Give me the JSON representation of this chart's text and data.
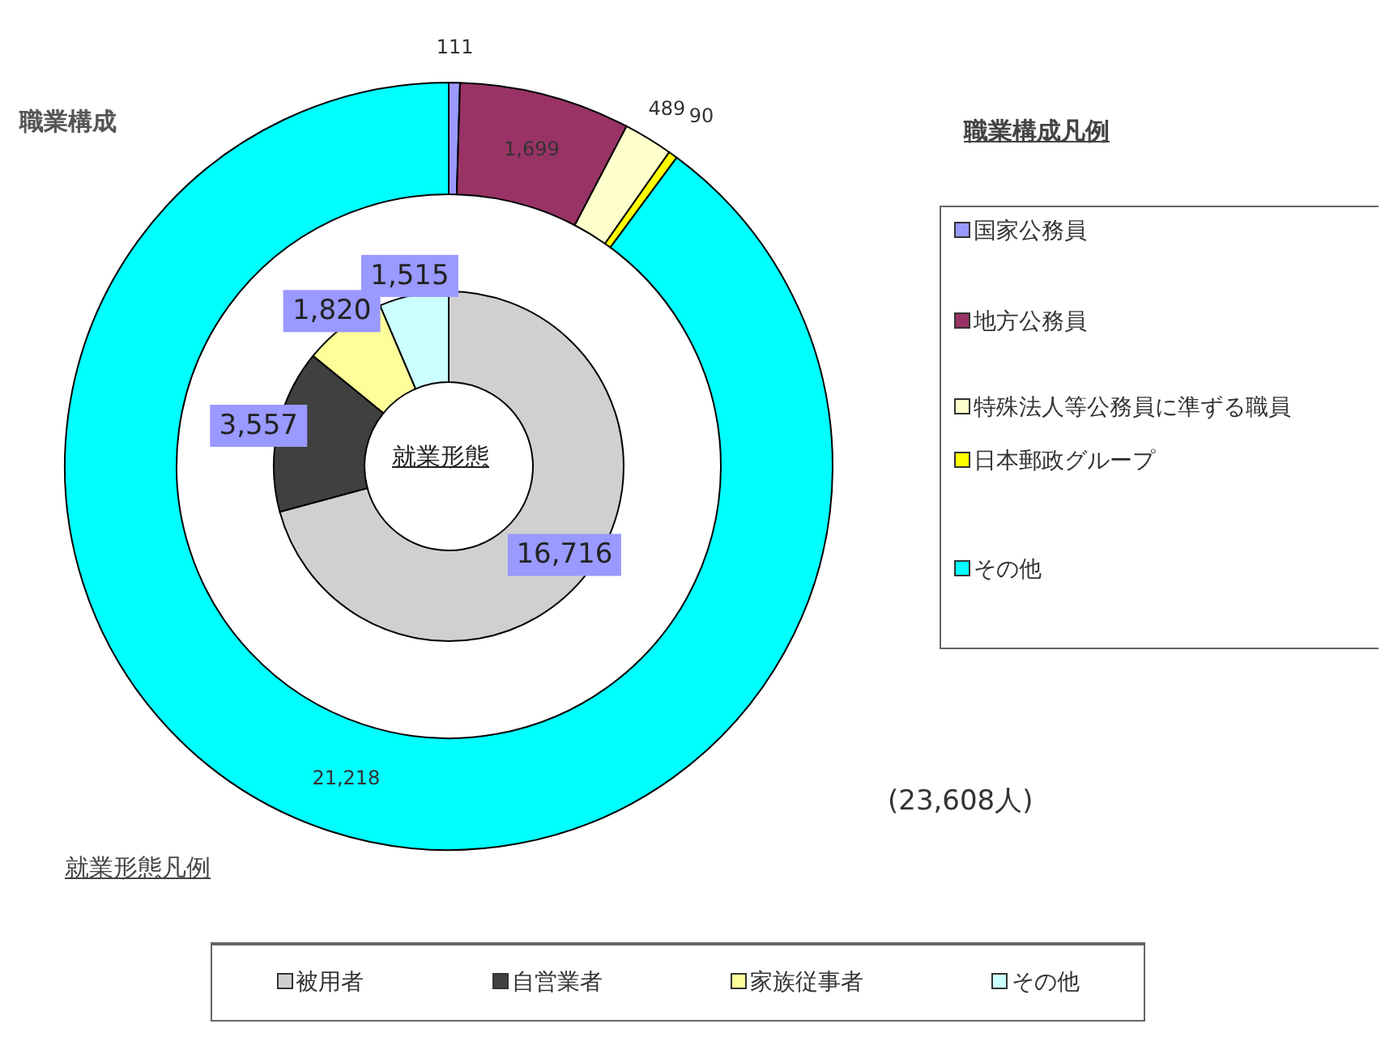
{
  "chart_data": [
    {
      "type": "donut",
      "title": "職業構成",
      "legend_title": "職業構成凡例",
      "legend": "right",
      "annotations": [
        "(23,608人)"
      ],
      "value_labels": [
        "111",
        "1,699",
        "489",
        "90",
        "21,218"
      ],
      "categories": [
        "国家公務員",
        "地方公務員",
        "特殊法人等公務員に準ずる職員",
        "日本郵政グループ",
        "その他"
      ],
      "values": [
        111,
        1699,
        489,
        90,
        21218
      ],
      "colors": [
        "#9999ff",
        "#993366",
        "#ffffcc",
        "#ffff00",
        "#00ffff"
      ]
    },
    {
      "type": "donut",
      "title": "就業形態",
      "legend_title": "就業形態凡例",
      "legend": "bottom",
      "value_labels": [
        "16,716",
        "3,557",
        "1,820",
        "1,515"
      ],
      "categories": [
        "被用者",
        "自営業者",
        "家族従事者",
        "その他"
      ],
      "values": [
        16716,
        3557,
        1820,
        1515
      ],
      "colors": [
        "#d0d0d0",
        "#404040",
        "#ffff99",
        "#ccffff"
      ]
    }
  ]
}
